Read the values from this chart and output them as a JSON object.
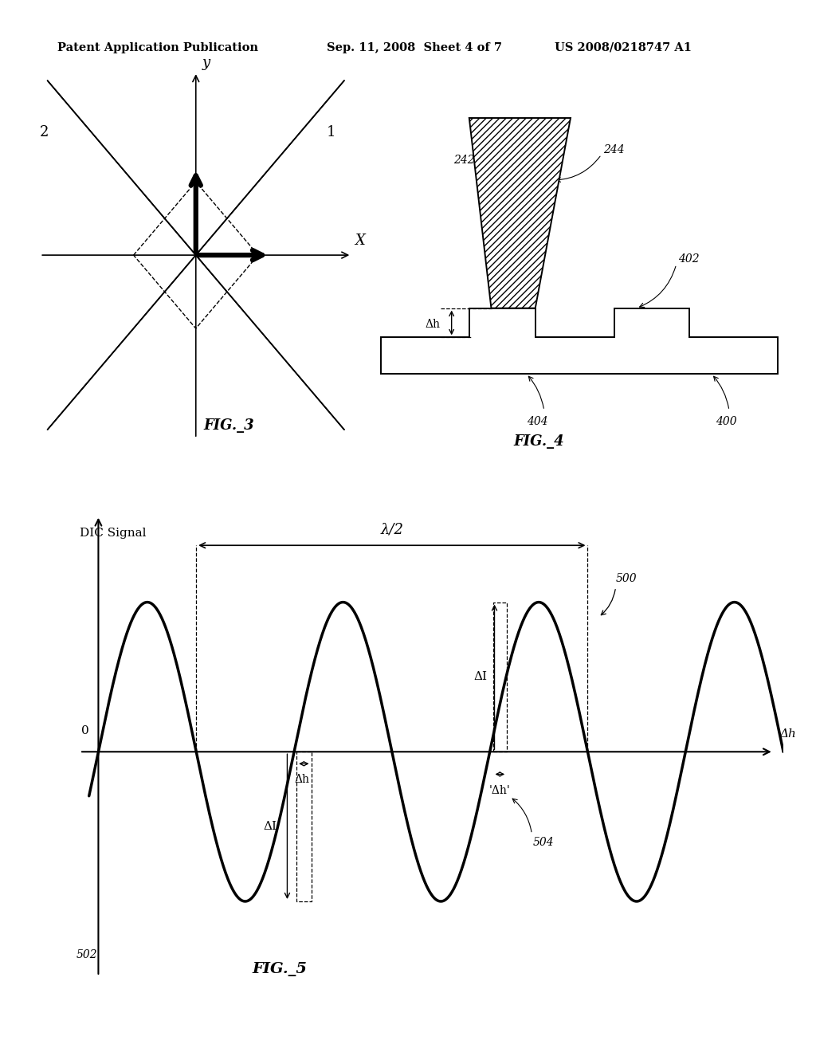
{
  "bg_color": "#ffffff",
  "header_left": "Patent Application Publication",
  "header_mid": "Sep. 11, 2008  Sheet 4 of 7",
  "header_right": "US 2008/0218747 A1",
  "fig3_label": "FIG._3",
  "fig4_label": "FIG._4",
  "fig5_label": "FIG._5",
  "fig5": {
    "ylabel": "DIC Signal",
    "xlabel": "Δh",
    "zero_label": "0",
    "label_500": "500",
    "label_502": "502",
    "label_504": "504",
    "lambda_label": "λ/2",
    "delta_h_label": "Δh",
    "delta_I_label": "ΔI"
  }
}
